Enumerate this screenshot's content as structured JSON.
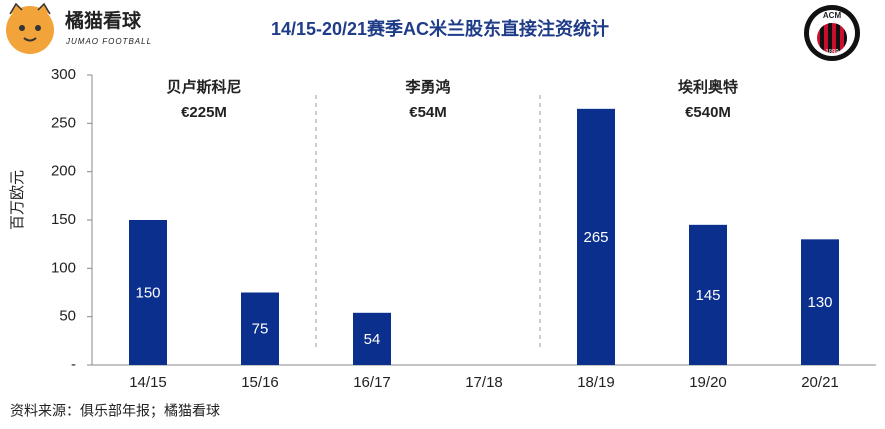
{
  "chart_data": {
    "type": "bar",
    "title": "14/15-20/21赛季AC米兰股东直接注资统计",
    "y_label": "百万欧元",
    "categories": [
      "14/15",
      "15/16",
      "16/17",
      "17/18",
      "18/19",
      "19/20",
      "20/21"
    ],
    "values": [
      150,
      75,
      54,
      null,
      265,
      145,
      130
    ],
    "color": "#0a2f8c",
    "ylim": [
      0,
      300
    ],
    "yticks": [
      {
        "value": 0,
        "label": "-"
      },
      50,
      100,
      150,
      200,
      250,
      300
    ],
    "groups": [
      {
        "name": "贝卢斯科尼",
        "amount": "€225M"
      },
      {
        "name": "李勇鸿",
        "amount": "€54M"
      },
      {
        "name": "埃利奥特",
        "amount": "€540M"
      }
    ],
    "source": "资料来源：俱乐部年报；橘猫看球"
  },
  "logo": {
    "name": "橘猫看球",
    "subtitle": "JUMAO FOOTBALL"
  },
  "club_logo": {
    "initials": "ACM",
    "year": "1899"
  }
}
